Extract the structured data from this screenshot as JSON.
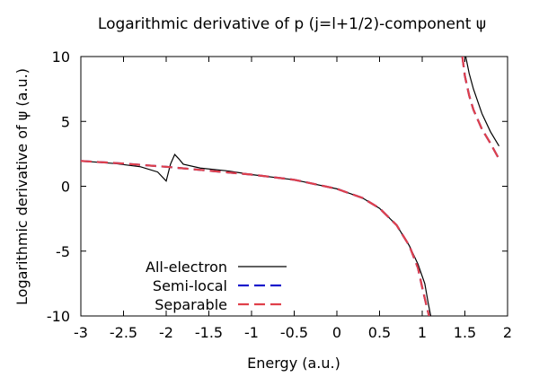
{
  "chart_data": {
    "type": "line",
    "title": "Logarithmic derivative of p (j=l+1/2)-component ψ",
    "xlabel": "Energy (a.u.)",
    "ylabel": "Logarithmic derivative of ψ (a.u.)",
    "xlim": [
      -3,
      2
    ],
    "ylim": [
      -10,
      10
    ],
    "x_ticks": [
      -3,
      -2.5,
      -2,
      -1.5,
      -1,
      -0.5,
      0,
      0.5,
      1,
      1.5,
      2
    ],
    "y_ticks": [
      -10,
      -5,
      0,
      5,
      10
    ],
    "x_tick_labels": [
      "-3",
      "-2.5",
      "-2",
      "-1.5",
      "-1",
      "-0.5",
      "0",
      "0.5",
      "1",
      "1.5",
      "2"
    ],
    "y_tick_labels": [
      "-10",
      "-5",
      "0",
      "5",
      "10"
    ],
    "grid": false,
    "legend_position": "bottom-left",
    "series": [
      {
        "name": "All-electron",
        "color": "#000000",
        "dash": "solid",
        "segments": [
          [
            [
              -3,
              1.95
            ],
            [
              -2.6,
              1.75
            ],
            [
              -2.3,
              1.5
            ],
            [
              -2.1,
              1.1
            ],
            [
              -2.0,
              0.4
            ],
            [
              -1.95,
              1.7
            ],
            [
              -1.9,
              2.45
            ],
            [
              -1.85,
              2.1
            ],
            [
              -1.8,
              1.7
            ],
            [
              -1.6,
              1.4
            ],
            [
              -1.3,
              1.2
            ],
            [
              -1.0,
              0.9
            ],
            [
              -0.5,
              0.5
            ],
            [
              0.0,
              -0.2
            ],
            [
              0.3,
              -0.9
            ],
            [
              0.5,
              -1.7
            ],
            [
              0.7,
              -3.0
            ],
            [
              0.85,
              -4.6
            ],
            [
              0.95,
              -6.0
            ],
            [
              1.03,
              -7.5
            ],
            [
              1.07,
              -9.0
            ],
            [
              1.1,
              -10
            ]
          ],
          [
            [
              1.51,
              10
            ],
            [
              1.55,
              8.7
            ],
            [
              1.6,
              7.5
            ],
            [
              1.7,
              5.6
            ],
            [
              1.8,
              4.2
            ],
            [
              1.9,
              3.1
            ]
          ]
        ]
      },
      {
        "name": "Semi-local",
        "color": "#1a1acc",
        "dash": "dashed",
        "segments": [
          [
            [
              -3,
              1.95
            ],
            [
              -2.5,
              1.75
            ],
            [
              -2.0,
              1.5
            ],
            [
              -1.5,
              1.2
            ],
            [
              -1.0,
              0.9
            ],
            [
              -0.5,
              0.5
            ],
            [
              0.0,
              -0.2
            ],
            [
              0.3,
              -0.9
            ],
            [
              0.5,
              -1.7
            ],
            [
              0.7,
              -3.0
            ],
            [
              0.85,
              -4.6
            ],
            [
              0.95,
              -6.3
            ],
            [
              1.0,
              -7.8
            ],
            [
              1.05,
              -9.2
            ],
            [
              1.08,
              -10
            ]
          ],
          [
            [
              1.47,
              10
            ],
            [
              1.5,
              8.5
            ],
            [
              1.55,
              7.0
            ],
            [
              1.6,
              5.9
            ],
            [
              1.7,
              4.4
            ],
            [
              1.8,
              3.3
            ],
            [
              1.9,
              2.1
            ]
          ]
        ]
      },
      {
        "name": "Separable",
        "color": "#e0404a",
        "dash": "dashed",
        "segments": [
          [
            [
              -3,
              1.95
            ],
            [
              -2.5,
              1.75
            ],
            [
              -2.0,
              1.5
            ],
            [
              -1.5,
              1.2
            ],
            [
              -1.0,
              0.9
            ],
            [
              -0.5,
              0.5
            ],
            [
              0.0,
              -0.2
            ],
            [
              0.3,
              -0.9
            ],
            [
              0.5,
              -1.7
            ],
            [
              0.7,
              -3.0
            ],
            [
              0.85,
              -4.6
            ],
            [
              0.95,
              -6.3
            ],
            [
              1.0,
              -7.8
            ],
            [
              1.05,
              -9.2
            ],
            [
              1.08,
              -10
            ]
          ],
          [
            [
              1.47,
              10
            ],
            [
              1.5,
              8.5
            ],
            [
              1.55,
              7.0
            ],
            [
              1.6,
              5.9
            ],
            [
              1.7,
              4.4
            ],
            [
              1.8,
              3.3
            ],
            [
              1.9,
              2.1
            ]
          ]
        ]
      }
    ]
  }
}
